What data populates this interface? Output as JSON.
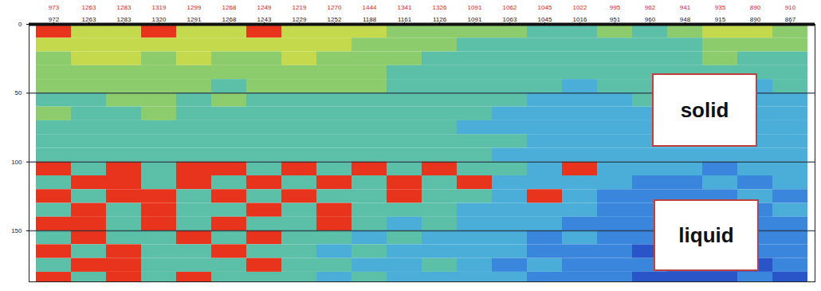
{
  "chart_data": {
    "type": "heatmap",
    "categories": [
      "972",
      "1263",
      "1283",
      "1320",
      "1291",
      "1268",
      "1243",
      "1229",
      "1252",
      "1188",
      "1161",
      "1126",
      "1091",
      "1063",
      "1045",
      "1016",
      "951",
      "960",
      "948",
      "915",
      "890",
      "867"
    ],
    "secondary_labels": [
      "973",
      "1263",
      "1283",
      "1319",
      "1299",
      "1268",
      "1249",
      "1219",
      "1270",
      "1444",
      "1341",
      "1326",
      "1091",
      "1062",
      "1045",
      "1022",
      "995",
      "962",
      "941",
      "935",
      "890",
      "910"
    ],
    "y_bins": [
      0,
      10,
      20,
      30,
      40,
      50,
      60,
      70,
      80,
      90,
      100,
      110,
      120,
      130,
      140,
      150,
      160,
      170,
      180,
      187
    ],
    "values": [
      [
        6,
        5,
        5,
        6,
        5,
        5,
        6,
        5,
        5,
        5,
        4,
        4,
        4,
        4,
        3,
        3,
        4,
        3,
        4,
        5,
        5,
        4
      ],
      [
        5,
        5,
        5,
        5,
        5,
        5,
        5,
        5,
        5,
        4,
        4,
        4,
        3,
        3,
        3,
        3,
        3,
        3,
        3,
        4,
        4,
        4
      ],
      [
        4,
        5,
        5,
        4,
        5,
        4,
        4,
        5,
        4,
        4,
        4,
        3,
        3,
        3,
        3,
        3,
        3,
        3,
        3,
        4,
        3,
        3
      ],
      [
        4,
        4,
        4,
        4,
        4,
        4,
        4,
        4,
        4,
        4,
        3,
        3,
        3,
        3,
        3,
        3,
        3,
        3,
        3,
        3,
        3,
        3
      ],
      [
        4,
        4,
        4,
        4,
        4,
        3,
        4,
        4,
        4,
        4,
        3,
        3,
        3,
        3,
        3,
        2,
        3,
        3,
        3,
        3,
        2,
        3
      ],
      [
        3,
        3,
        4,
        4,
        3,
        4,
        3,
        3,
        3,
        3,
        3,
        3,
        3,
        3,
        2,
        2,
        2,
        3,
        3,
        2,
        2,
        2
      ],
      [
        4,
        3,
        3,
        4,
        3,
        3,
        3,
        3,
        3,
        3,
        3,
        3,
        3,
        2,
        2,
        2,
        2,
        2,
        3,
        2,
        2,
        2
      ],
      [
        3,
        3,
        3,
        3,
        3,
        3,
        3,
        3,
        3,
        3,
        3,
        3,
        2,
        2,
        2,
        2,
        2,
        2,
        2,
        2,
        2,
        2
      ],
      [
        3,
        3,
        3,
        3,
        3,
        3,
        3,
        3,
        3,
        3,
        3,
        3,
        3,
        3,
        2,
        2,
        2,
        2,
        2,
        2,
        2,
        2
      ],
      [
        3,
        3,
        3,
        3,
        3,
        3,
        3,
        3,
        3,
        3,
        3,
        3,
        3,
        2,
        2,
        2,
        2,
        2,
        2,
        2,
        2,
        2
      ],
      [
        6,
        3,
        6,
        3,
        6,
        6,
        3,
        6,
        3,
        6,
        3,
        6,
        3,
        3,
        2,
        6,
        2,
        2,
        2,
        1,
        2,
        2
      ],
      [
        3,
        6,
        6,
        3,
        6,
        3,
        6,
        3,
        6,
        3,
        6,
        3,
        6,
        2,
        2,
        2,
        2,
        1,
        1,
        2,
        1,
        2
      ],
      [
        6,
        3,
        6,
        6,
        3,
        6,
        3,
        6,
        3,
        3,
        6,
        3,
        3,
        2,
        6,
        2,
        1,
        1,
        1,
        1,
        2,
        1
      ],
      [
        3,
        6,
        3,
        6,
        3,
        3,
        6,
        3,
        6,
        3,
        3,
        3,
        2,
        2,
        2,
        2,
        1,
        1,
        1,
        1,
        1,
        2
      ],
      [
        6,
        6,
        3,
        6,
        3,
        6,
        3,
        3,
        6,
        3,
        2,
        3,
        2,
        2,
        2,
        1,
        1,
        1,
        1,
        0,
        1,
        1
      ],
      [
        3,
        6,
        3,
        3,
        6,
        3,
        6,
        3,
        3,
        2,
        3,
        2,
        2,
        2,
        1,
        2,
        1,
        1,
        0,
        0,
        1,
        1
      ],
      [
        6,
        3,
        6,
        3,
        3,
        6,
        3,
        3,
        2,
        3,
        2,
        2,
        2,
        2,
        1,
        1,
        1,
        0,
        0,
        0,
        1,
        1
      ],
      [
        3,
        6,
        6,
        3,
        3,
        3,
        6,
        3,
        3,
        2,
        2,
        3,
        2,
        1,
        2,
        1,
        1,
        1,
        0,
        0,
        0,
        1
      ],
      [
        6,
        3,
        6,
        3,
        6,
        3,
        3,
        3,
        2,
        3,
        2,
        2,
        2,
        2,
        1,
        1,
        1,
        0,
        0,
        0,
        1,
        0
      ]
    ],
    "color_scale": {
      "levels": [
        0,
        1,
        2,
        3,
        4,
        5,
        6
      ],
      "colors": [
        "#2a55c8",
        "#3a86dc",
        "#4aaed8",
        "#5cbfa8",
        "#8ccc6c",
        "#c4da4c",
        "#e8341c"
      ]
    },
    "ylim": [
      0,
      187
    ],
    "yticks": [
      0,
      50,
      100,
      150
    ],
    "grid": true,
    "annotations": [
      "solid",
      "liquid"
    ]
  }
}
